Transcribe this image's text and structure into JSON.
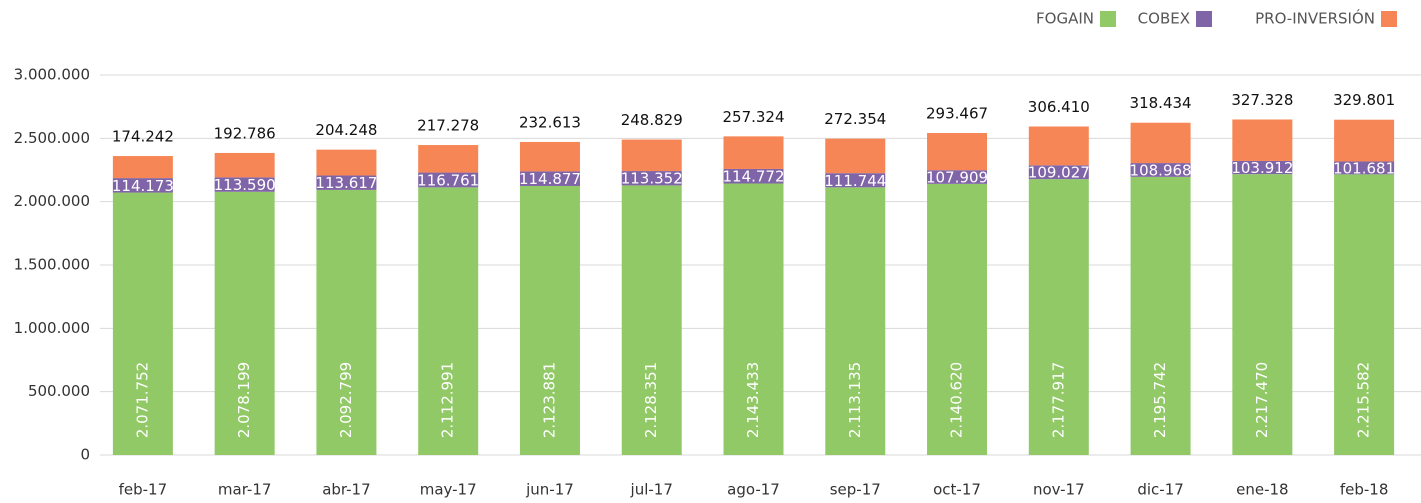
{
  "chart_data": {
    "type": "stacked_bar",
    "categories": [
      "feb-17",
      "mar-17",
      "abr-17",
      "may-17",
      "jun-17",
      "jul-17",
      "ago-17",
      "sep-17",
      "oct-17",
      "nov-17",
      "dic-17",
      "ene-18",
      "feb-18"
    ],
    "series": [
      {
        "name": "FOGAIN",
        "color": "#92c967",
        "values": [
          2071752,
          2078199,
          2092799,
          2112991,
          2123881,
          2128351,
          2143433,
          2113135,
          2140620,
          2177917,
          2195742,
          2217470,
          2215582
        ],
        "value_labels": [
          "2.071.752",
          "2.078.199",
          "2.092.799",
          "2.112.991",
          "2.123.881",
          "2.128.351",
          "2.143.433",
          "2.113.135",
          "2.140.620",
          "2.177.917",
          "2.195.742",
          "2.217.470",
          "2.215.582"
        ]
      },
      {
        "name": "COBEX",
        "color": "#8064a8",
        "values": [
          114173,
          113590,
          113617,
          116761,
          114877,
          113352,
          114772,
          111744,
          107909,
          109027,
          108968,
          103912,
          101681
        ],
        "value_labels": [
          "114.173",
          "113.590",
          "113.617",
          "116.761",
          "114.877",
          "113.352",
          "114.772",
          "111.744",
          "107.909",
          "109.027",
          "108.968",
          "103.912",
          "101.681"
        ]
      },
      {
        "name": "PRO-INVERSIÓN",
        "color": "#f68655",
        "values": [
          174242,
          192786,
          204248,
          217278,
          232613,
          248829,
          257324,
          272354,
          293467,
          306410,
          318434,
          327328,
          329801
        ],
        "value_labels": [
          "174.242",
          "192.786",
          "204.248",
          "217.278",
          "232.613",
          "248.829",
          "257.324",
          "272.354",
          "293.467",
          "306.410",
          "318.434",
          "327.328",
          "329.801"
        ]
      }
    ],
    "ylim": [
      0,
      3000000
    ],
    "yticks": [
      0,
      {
        "value": 500000,
        "label": "500.000"
      },
      {
        "value": 1000000,
        "label": "1.000.000"
      },
      {
        "value": 1500000,
        "label": "1.500.000"
      },
      {
        "value": 2000000,
        "label": "2.000.000"
      },
      {
        "value": 2500000,
        "label": "2.500.000"
      },
      {
        "value": 3000000,
        "label": "3.000.000"
      }
    ],
    "grid": true,
    "legend": "top-right"
  }
}
